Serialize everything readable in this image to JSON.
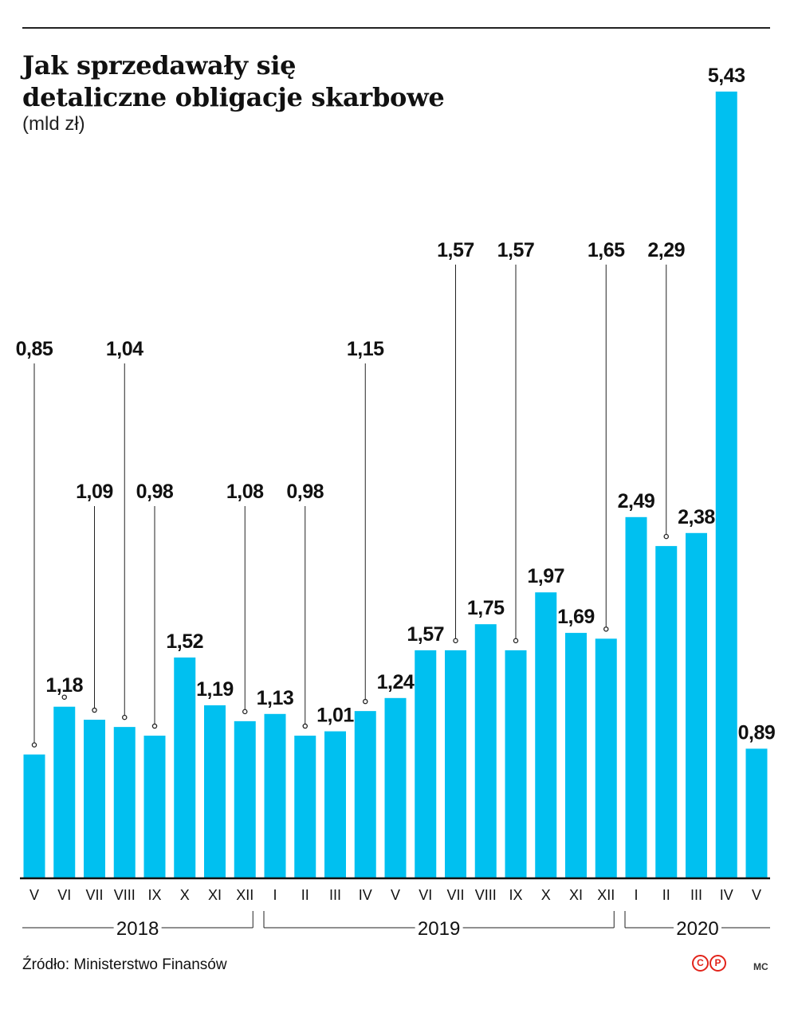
{
  "header": {
    "title_line1": "Jak sprzedawały się",
    "title_line2": "detaliczne obligacje skarbowe",
    "subtitle": "(mld zł)"
  },
  "footer": {
    "source": "Źródło: Ministerstwo Finansów",
    "logo_left": "C",
    "logo_right": "P",
    "credit": "MC"
  },
  "colors": {
    "bar": "#00c0f0",
    "axis": "#111111",
    "text": "#111111",
    "logo": "#e2231a"
  },
  "chart_data": {
    "type": "bar",
    "title": "Jak sprzedawały się detaliczne obligacje skarbowe",
    "ylabel": "(mld zł)",
    "ylim": [
      0,
      5.6
    ],
    "grid": false,
    "categories": [
      "V",
      "VI",
      "VII",
      "VIII",
      "IX",
      "X",
      "XI",
      "XII",
      "I",
      "II",
      "III",
      "IV",
      "V",
      "VI",
      "VII",
      "VIII",
      "IX",
      "X",
      "XI",
      "XII",
      "I",
      "II",
      "III",
      "IV",
      "V"
    ],
    "values": [
      0.85,
      1.18,
      1.09,
      1.04,
      0.98,
      1.52,
      1.19,
      1.08,
      1.13,
      0.98,
      1.01,
      1.15,
      1.24,
      1.57,
      1.57,
      1.75,
      1.57,
      1.97,
      1.69,
      1.65,
      2.49,
      2.29,
      2.38,
      5.43,
      0.89
    ],
    "labels": [
      "0,85",
      "1,18",
      "1,09",
      "1,04",
      "0,98",
      "1,52",
      "1,19",
      "1,08",
      "1,13",
      "0,98",
      "1,01",
      "1,15",
      "1,24",
      "1,57",
      "1,57",
      "1,75",
      "1,57",
      "1,97",
      "1,69",
      "1,65",
      "2,49",
      "2,29",
      "2,38",
      "5,43",
      "0,89"
    ],
    "label_high": [
      3,
      1,
      2,
      3,
      2,
      0,
      0,
      2,
      0,
      2,
      0,
      3,
      0,
      0,
      4,
      0,
      4,
      0,
      0,
      4,
      0,
      4,
      0,
      0,
      0
    ],
    "label_high_note": "annotation tier for callout labels (0 = just above bar, 1-4 = raised tiers with leader line)",
    "years": [
      {
        "label": "2018",
        "from": 0,
        "to": 7
      },
      {
        "label": "2019",
        "from": 8,
        "to": 19
      },
      {
        "label": "2020",
        "from": 20,
        "to": 24
      }
    ]
  }
}
